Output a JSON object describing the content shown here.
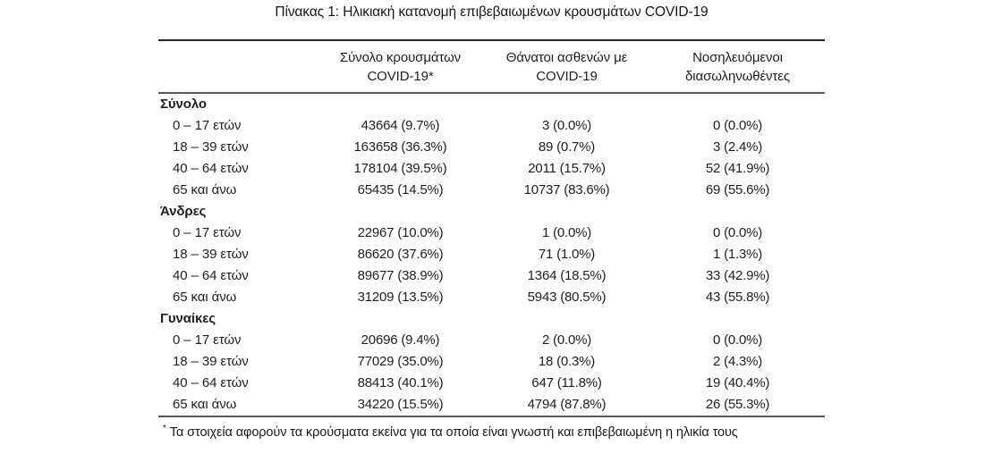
{
  "title": "Πίνακας 1: Ηλικιακή κατανομή επιβεβαιωμένων κρουσμάτων COVID-19",
  "colors": {
    "text": "#1f1f21",
    "rule_dark": "#262626",
    "rule_gray": "#56575b"
  },
  "table": {
    "column_headers": [
      {
        "line1": "Σύνολο κρουσμάτων",
        "line2": "COVID-19*"
      },
      {
        "line1": "Θάνατοι ασθενών με",
        "line2": "COVID-19"
      },
      {
        "line1": "Νοσηλευόμενοι",
        "line2": "διασωληνωθέντες"
      }
    ],
    "sections": [
      {
        "label": "Σύνολο",
        "rows": [
          {
            "label": "0 – 17 ετών",
            "cases": "43664 (9.7%)",
            "deaths": "3 (0.0%)",
            "intubated": "0 (0.0%)"
          },
          {
            "label": "18 – 39 ετών",
            "cases": "163658 (36.3%)",
            "deaths": "89 (0.7%)",
            "intubated": "3 (2.4%)"
          },
          {
            "label": "40 – 64 ετών",
            "cases": "178104 (39.5%)",
            "deaths": "2011 (15.7%)",
            "intubated": "52 (41.9%)"
          },
          {
            "label": "65 και άνω",
            "cases": "65435 (14.5%)",
            "deaths": "10737 (83.6%)",
            "intubated": "69 (55.6%)"
          }
        ]
      },
      {
        "label": "Άνδρες",
        "rows": [
          {
            "label": "0 – 17 ετών",
            "cases": "22967 (10.0%)",
            "deaths": "1 (0.0%)",
            "intubated": "0 (0.0%)"
          },
          {
            "label": "18 – 39 ετών",
            "cases": "86620 (37.6%)",
            "deaths": "71 (1.0%)",
            "intubated": "1 (1.3%)"
          },
          {
            "label": "40 – 64 ετών",
            "cases": "89677 (38.9%)",
            "deaths": "1364 (18.5%)",
            "intubated": "33 (42.9%)"
          },
          {
            "label": "65 και άνω",
            "cases": "31209 (13.5%)",
            "deaths": "5943 (80.5%)",
            "intubated": "43 (55.8%)"
          }
        ]
      },
      {
        "label": "Γυναίκες",
        "rows": [
          {
            "label": "0 – 17 ετών",
            "cases": "20696 (9.4%)",
            "deaths": "2 (0.0%)",
            "intubated": "0 (0.0%)"
          },
          {
            "label": "18 – 39 ετών",
            "cases": "77029 (35.0%)",
            "deaths": "18 (0.3%)",
            "intubated": "2 (4.3%)"
          },
          {
            "label": "40 – 64 ετών",
            "cases": "88413 (40.1%)",
            "deaths": "647 (11.8%)",
            "intubated": "19 (40.4%)"
          },
          {
            "label": "65 και άνω",
            "cases": "34220 (15.5%)",
            "deaths": "4794 (87.8%)",
            "intubated": "26 (55.3%)"
          }
        ]
      }
    ],
    "footnote_marker": "*",
    "footnote": "Τα στοιχεία αφορούν τα κρούσματα εκείνα για τα οποία είναι γνωστή και επιβεβαιωμένη η ηλικία τους"
  }
}
